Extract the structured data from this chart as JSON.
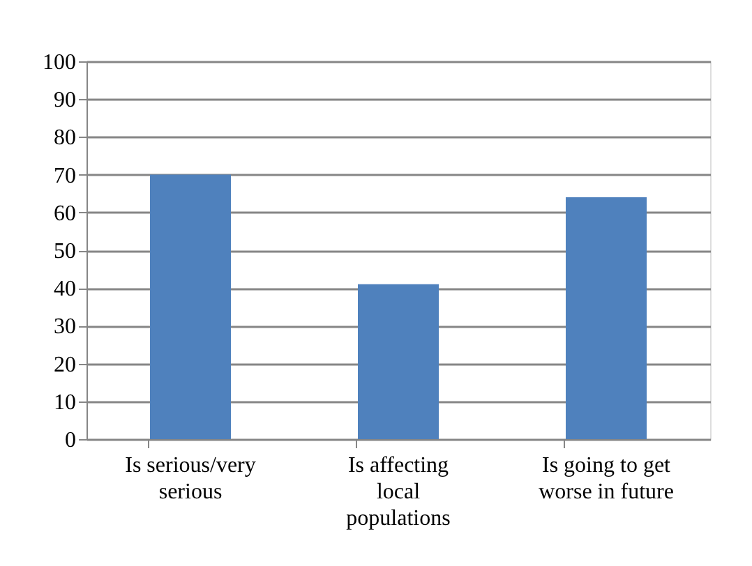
{
  "chart_data": {
    "type": "bar",
    "categories": [
      "Is serious/very serious",
      "Is affecting local populations",
      "Is going to get worse in future"
    ],
    "values": [
      70,
      41,
      64
    ],
    "color": "#4f81bd",
    "ylim": [
      0,
      100
    ],
    "yticks": [
      0,
      10,
      20,
      30,
      40,
      50,
      60,
      70,
      80,
      90,
      100
    ],
    "grid": "y"
  }
}
